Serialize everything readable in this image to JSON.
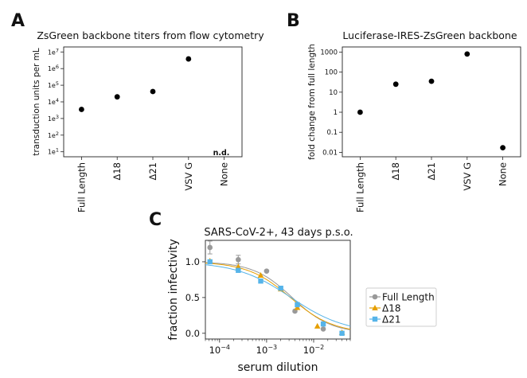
{
  "panel_letters": [
    "A",
    "B",
    "C"
  ],
  "chart_data": [
    {
      "panel": "A",
      "type": "scatter",
      "title": "ZsGreen backbone titers from flow cytometry",
      "ylabel": "transduction units per mL",
      "xlabel": "",
      "scale_y": "log",
      "categories": [
        "Full Length",
        "Δ18",
        "Δ21",
        "VSV G",
        "None"
      ],
      "values": [
        3500,
        20000,
        42000,
        3800000,
        null
      ],
      "ytick_values": [
        10,
        100,
        1000,
        10000,
        100000,
        1000000,
        10000000
      ],
      "ytick_exponents": [
        "1",
        "2",
        "3",
        "4",
        "5",
        "6",
        "7"
      ],
      "ytick_base": "1e",
      "ylim": [
        5,
        20000000
      ],
      "annotation": "n.d.",
      "annotation_category": "None",
      "grid": false,
      "color": "#000000"
    },
    {
      "panel": "B",
      "type": "scatter",
      "title": "Luciferase-IRES-ZsGreen backbone",
      "ylabel": "fold change from full length",
      "xlabel": "",
      "scale_y": "log",
      "categories": [
        "Full Length",
        "Δ18",
        "Δ21",
        "VSV G",
        "None"
      ],
      "values": [
        1,
        25,
        35,
        800,
        0.017
      ],
      "ytick_values": [
        0.01,
        0.1,
        1,
        10,
        100,
        1000
      ],
      "ytick_labels": [
        "0.01",
        "0.1",
        "1",
        "10",
        "100",
        "1000"
      ],
      "ylim": [
        0.006,
        1800
      ],
      "grid": false,
      "color": "#000000"
    },
    {
      "panel": "C",
      "type": "line",
      "title": "SARS-CoV-2+, 43 days p.s.o.",
      "xlabel": "serum dilution",
      "ylabel": "fraction infectivity",
      "scale_x": "log",
      "xlim": [
        5e-05,
        0.06
      ],
      "ylim": [
        -0.08,
        1.3
      ],
      "xtick_values": [
        0.0001,
        0.001,
        0.01
      ],
      "xtick_base": "10",
      "xtick_exponents": [
        "−4",
        "−3",
        "−2"
      ],
      "ytick_values": [
        0,
        0.5,
        1
      ],
      "ytick_labels": [
        "0.0",
        "0.5",
        "1.0"
      ],
      "legend_position": "outside-right",
      "grid": false,
      "series": [
        {
          "name": "Full Length",
          "color": "#999999",
          "marker": "circle",
          "x": [
            6.25e-05,
            0.00025,
            0.001,
            0.004,
            0.016
          ],
          "y": [
            1.2,
            1.03,
            0.87,
            0.31,
            0.06
          ],
          "err": [
            0.09,
            0.06,
            0,
            0,
            0
          ],
          "ic50": 0.0035,
          "hill": 1.05
        },
        {
          "name": "Δ18",
          "color": "#E69F00",
          "marker": "triangle",
          "x": [
            6.25e-05,
            0.00025,
            0.00075,
            0.002,
            0.0045,
            0.012,
            0.04
          ],
          "y": [
            1.01,
            0.93,
            0.81,
            0.62,
            0.36,
            0.1,
            0.01
          ],
          "err": [
            0,
            0,
            0,
            0,
            0,
            0,
            0
          ],
          "ic50": 0.0032,
          "hill": 0.95
        },
        {
          "name": "Δ21",
          "color": "#56B4E9",
          "marker": "square",
          "x": [
            6.25e-05,
            0.00025,
            0.00075,
            0.002,
            0.0045,
            0.016,
            0.04
          ],
          "y": [
            1.0,
            0.88,
            0.73,
            0.63,
            0.4,
            0.13,
            0.0
          ],
          "err": [
            0,
            0,
            0,
            0,
            0,
            0,
            0
          ],
          "ic50": 0.0033,
          "hill": 0.75
        }
      ]
    }
  ]
}
